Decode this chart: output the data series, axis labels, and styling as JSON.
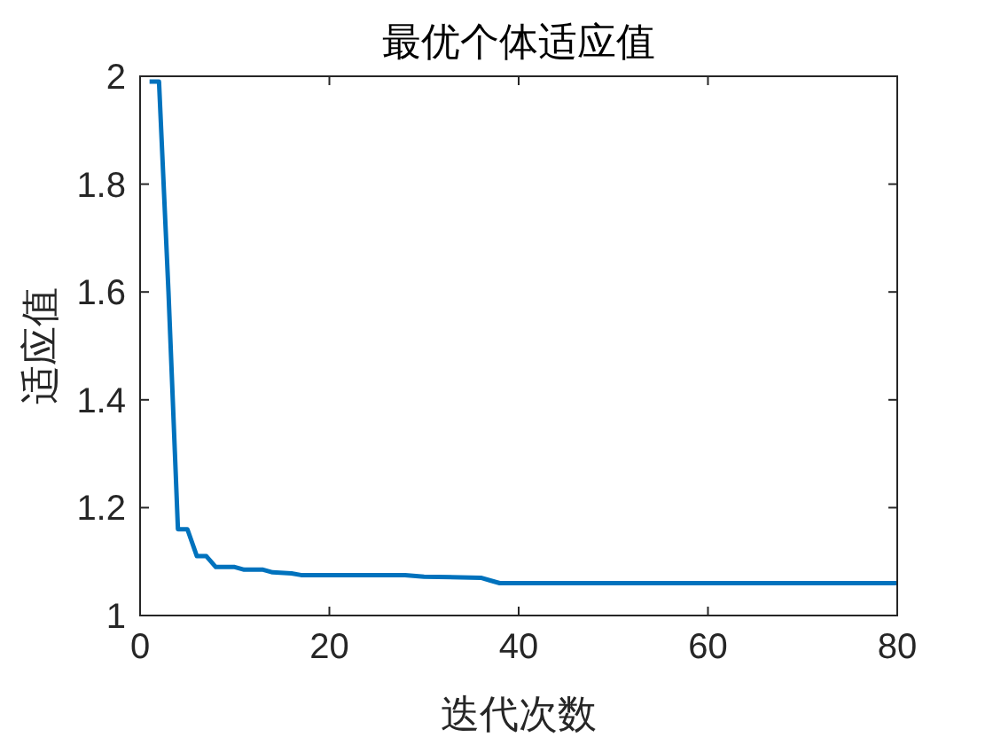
{
  "chart_data": {
    "type": "line",
    "title": "最优个体适应值",
    "xlabel": "迭代次数",
    "ylabel": "适应值",
    "x": [
      1,
      2,
      3,
      4,
      5,
      6,
      7,
      8,
      10,
      11,
      13,
      14,
      16,
      17,
      28,
      30,
      36,
      37,
      38,
      50,
      60,
      70,
      80
    ],
    "series": [
      {
        "color": "#0072bd",
        "values": [
          1.99,
          1.99,
          1.6,
          1.16,
          1.16,
          1.11,
          1.11,
          1.09,
          1.09,
          1.085,
          1.085,
          1.08,
          1.078,
          1.075,
          1.075,
          1.072,
          1.07,
          1.065,
          1.06,
          1.06,
          1.06,
          1.06,
          1.06
        ]
      }
    ],
    "xlim": [
      0,
      80
    ],
    "ylim": [
      1,
      2
    ],
    "xticks": [
      0,
      20,
      40,
      60,
      80
    ],
    "yticks": [
      1,
      1.2,
      1.4,
      1.6,
      1.8,
      2
    ],
    "grid": false,
    "marker": "none",
    "line_style": "solid"
  }
}
